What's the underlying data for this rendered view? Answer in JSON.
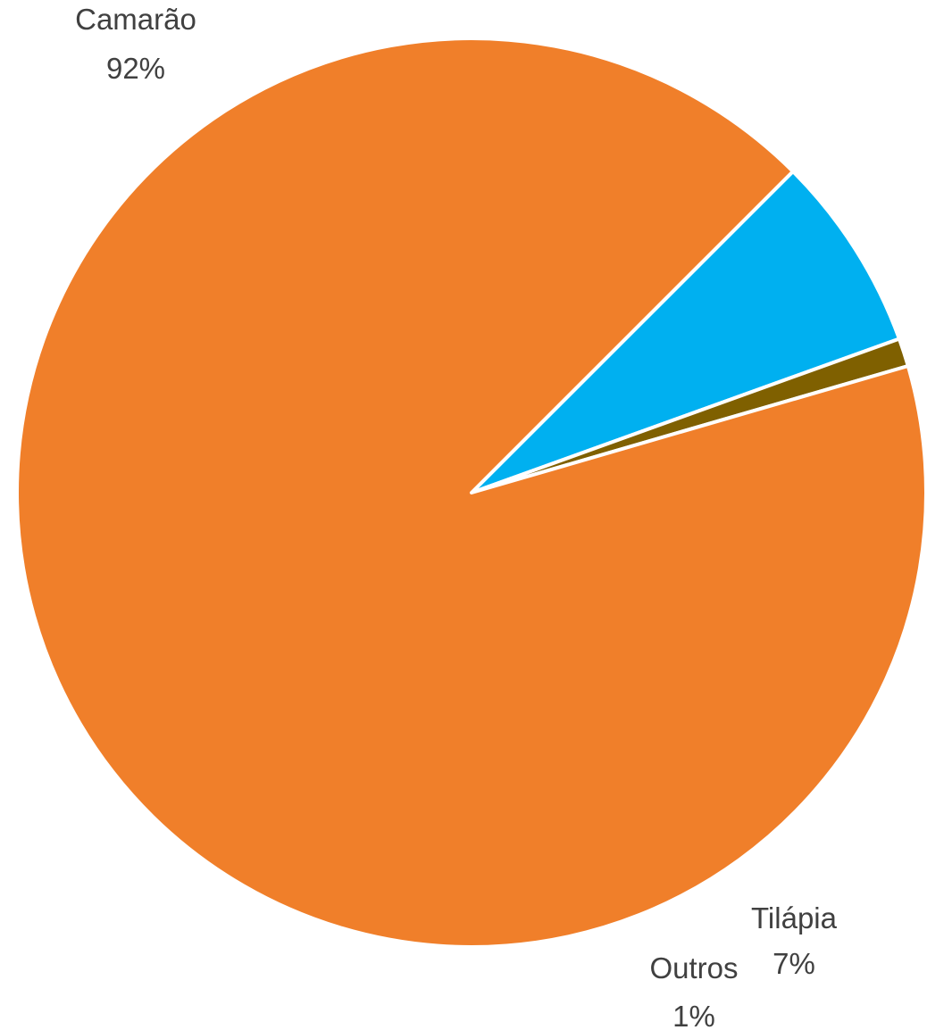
{
  "chart_data": {
    "type": "pie",
    "title": "",
    "slices": [
      {
        "name": "Tilápia",
        "value": 7,
        "label": "7%",
        "color": "#00B0F0"
      },
      {
        "name": "Outros",
        "value": 1,
        "label": "1%",
        "color": "#7F6000"
      },
      {
        "name": "Camarão",
        "value": 92,
        "label": "92%",
        "color": "#F07F2A"
      }
    ],
    "start_angle_deg": 45,
    "direction": "clockwise",
    "legend": "none",
    "data_labels": "category-and-percent"
  }
}
